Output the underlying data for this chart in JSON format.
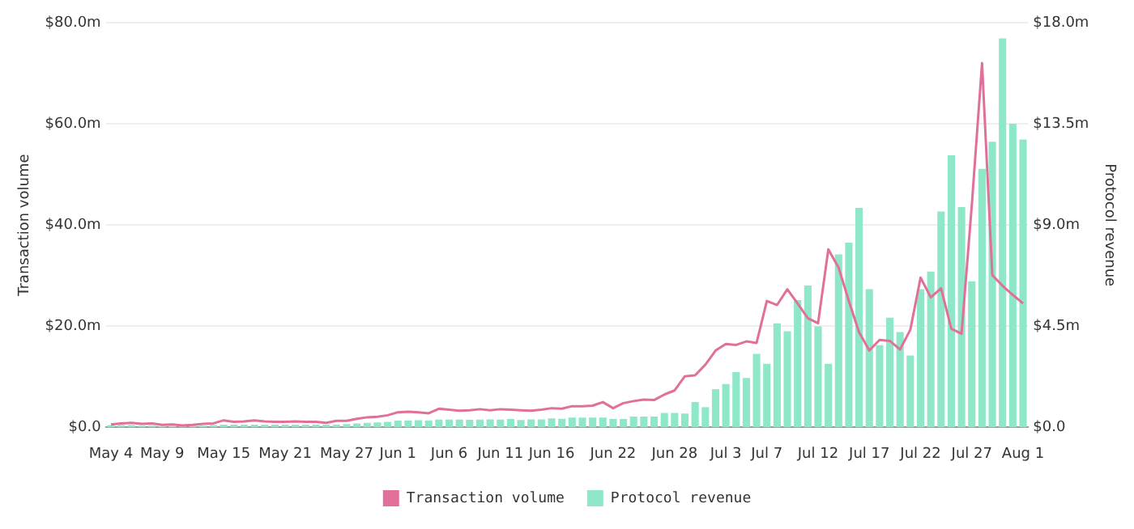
{
  "chart_data": {
    "type": "bar",
    "xlabel": null,
    "ylabel": "Transaction volume",
    "y2label": "Protocol revenue",
    "categories": [
      "May 4",
      null,
      null,
      null,
      null,
      "May 9",
      null,
      null,
      null,
      null,
      null,
      "May 15",
      null,
      null,
      null,
      null,
      null,
      "May 21",
      null,
      null,
      null,
      null,
      null,
      "May 27",
      null,
      null,
      null,
      null,
      "Jun 1",
      null,
      null,
      null,
      null,
      "Jun 6",
      null,
      null,
      null,
      null,
      "Jun 11",
      null,
      null,
      null,
      null,
      "Jun 16",
      null,
      null,
      null,
      null,
      null,
      "Jun 22",
      null,
      null,
      null,
      null,
      null,
      "Jun 28",
      null,
      null,
      null,
      null,
      "Jul 3",
      null,
      null,
      null,
      "Jul 7",
      null,
      null,
      null,
      null,
      "Jul 12",
      null,
      null,
      null,
      null,
      "Jul 17",
      null,
      null,
      null,
      null,
      "Jul 22",
      null,
      null,
      null,
      null,
      "Jul 27",
      null,
      null,
      null,
      null,
      "Aug 1"
    ],
    "series": [
      {
        "name": "Transaction volume",
        "type": "line",
        "axis": "y",
        "color": "#e0709a",
        "values": [
          0.6,
          0.8,
          0.9,
          0.7,
          0.8,
          0.5,
          0.6,
          0.4,
          0.5,
          0.7,
          0.8,
          1.4,
          1.1,
          1.2,
          1.4,
          1.2,
          1.1,
          1.1,
          1.2,
          1.1,
          1.1,
          0.9,
          1.3,
          1.3,
          1.7,
          2.0,
          2.1,
          2.4,
          3.0,
          3.1,
          3.0,
          2.8,
          3.7,
          3.5,
          3.3,
          3.4,
          3.6,
          3.4,
          3.6,
          3.5,
          3.4,
          3.3,
          3.5,
          3.8,
          3.7,
          4.2,
          4.2,
          4.3,
          5.0,
          3.8,
          4.8,
          5.2,
          5.5,
          5.4,
          6.5,
          7.3,
          10.1,
          10.3,
          12.4,
          15.2,
          16.5,
          16.3,
          17.0,
          16.7,
          25.0,
          24.2,
          27.3,
          24.5,
          21.6,
          20.6,
          35.2,
          31.6,
          25.0,
          18.8,
          15.2,
          17.3,
          17.1,
          15.4,
          19.3,
          29.6,
          25.7,
          27.5,
          19.5,
          18.5,
          43.9,
          72.0,
          30.1,
          28.0,
          26.2,
          24.5
        ]
      },
      {
        "name": "Protocol revenue",
        "axis": "y2",
        "color": "#8ee8c8",
        "values": [
          0.1,
          0.1,
          0.1,
          0.08,
          0.08,
          0.06,
          0.06,
          0.06,
          0.08,
          0.08,
          0.1,
          0.12,
          0.12,
          0.12,
          0.12,
          0.12,
          0.12,
          0.12,
          0.12,
          0.12,
          0.12,
          0.12,
          0.12,
          0.15,
          0.18,
          0.2,
          0.22,
          0.25,
          0.3,
          0.3,
          0.32,
          0.3,
          0.35,
          0.35,
          0.35,
          0.34,
          0.35,
          0.36,
          0.35,
          0.37,
          0.33,
          0.36,
          0.36,
          0.4,
          0.38,
          0.44,
          0.44,
          0.44,
          0.44,
          0.37,
          0.37,
          0.48,
          0.48,
          0.48,
          0.64,
          0.64,
          0.62,
          1.13,
          0.9,
          1.7,
          1.93,
          2.46,
          2.2,
          3.27,
          2.83,
          4.63,
          4.28,
          5.66,
          6.31,
          4.49,
          2.83,
          7.69,
          8.22,
          9.76,
          6.15,
          3.66,
          4.88,
          4.24,
          3.2,
          6.15,
          6.93,
          9.6,
          12.1,
          9.8,
          6.5,
          11.5,
          12.7,
          17.3,
          13.5,
          12.8
        ]
      }
    ],
    "ylim": [
      0,
      80
    ],
    "yticks": [
      {
        "value": 0,
        "label": "$0.0"
      },
      {
        "value": 20,
        "label": "$20.0m"
      },
      {
        "value": 40,
        "label": "$40.0m"
      },
      {
        "value": 60,
        "label": "$60.0m"
      },
      {
        "value": 80,
        "label": "$80.0m"
      }
    ],
    "y2lim": [
      0,
      18
    ],
    "y2ticks": [
      {
        "value": 0,
        "label": "$0.0"
      },
      {
        "value": 4.5,
        "label": "$4.5m"
      },
      {
        "value": 9,
        "label": "$9.0m"
      },
      {
        "value": 13.5,
        "label": "$13.5m"
      },
      {
        "value": 18,
        "label": "$18.0m"
      }
    ],
    "grid": "y",
    "legend": "bottom",
    "marker": "none",
    "line_style": "solid"
  }
}
